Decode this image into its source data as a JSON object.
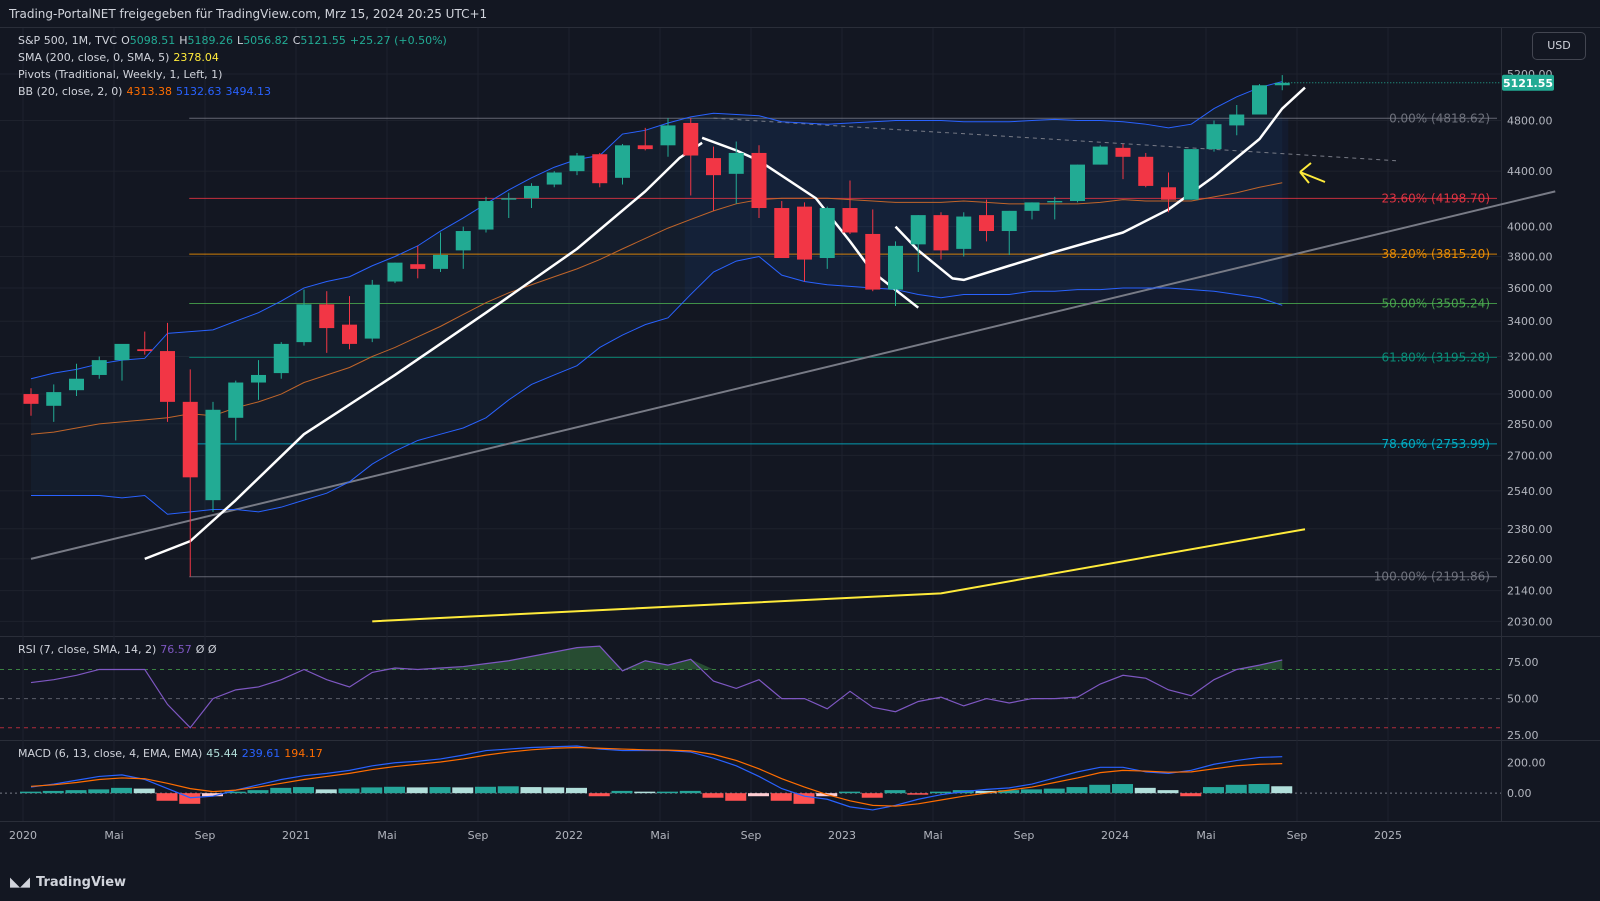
{
  "header": {
    "source_text": "Trading-PortalNET freigegeben für TradingView.com, Mrz 15, 2024 20:25 UTC+1"
  },
  "currency_button": "USD",
  "footer": {
    "brand": "TradingView",
    "brand_icon": "tradingview-logo-icon"
  },
  "legend": {
    "symbol": {
      "name": "S&P 500, 1M, TVC",
      "o_label": "O",
      "o": "5098.51",
      "h_label": "H",
      "h": "5189.26",
      "l_label": "L",
      "l": "5056.82",
      "c_label": "C",
      "c": "5121.55",
      "chg": "+25.27 (+0.50%)"
    },
    "sma": {
      "name": "SMA (200, close, 0, SMA, 5)",
      "value": "2378.04"
    },
    "pivots": {
      "name": "Pivots (Traditional, Weekly, 1, Left, 1)"
    },
    "bb": {
      "name": "BB (20, close, 2, 0)",
      "basis": "4313.38",
      "upper": "5132.63",
      "lower": "3494.13"
    },
    "rsi": {
      "name": "RSI (7, close, SMA, 14, 2)",
      "value": "76.57",
      "extra": "Ø Ø"
    },
    "macd": {
      "name": "MACD (6, 13, close, 4, EMA, EMA)",
      "hist": "45.44",
      "macd": "239.61",
      "signal": "194.17"
    }
  },
  "colors": {
    "up": "#22ab94",
    "down": "#f23645",
    "background": "#131722",
    "bb_band": "#2962ff",
    "bb_basis": "#c0652a",
    "sma": "#ffeb3b",
    "white_line": "#ffffff",
    "trend_line": "#787b86",
    "rsi": "#7e57c2",
    "macd_line": "#2962ff",
    "signal_line": "#ff6d00",
    "accent_arrow": "#ffeb3b"
  },
  "chart_data": [
    {
      "type": "candlestick",
      "title": "S&P 500, 1M, TVC",
      "y_scale": "log",
      "ylim": [
        2000,
        5400
      ],
      "y_ticks": [
        "5200.00",
        "4800.00",
        "4400.00",
        "4000.00",
        "3800.00",
        "3600.00",
        "3400.00",
        "3200.00",
        "3000.00",
        "2850.00",
        "2700.00",
        "2540.00",
        "2380.00",
        "2260.00",
        "2140.00",
        "2030.00"
      ],
      "x_ticks": [
        "Sep",
        "2020",
        "Mai",
        "Sep",
        "2021",
        "Mai",
        "Sep",
        "2022",
        "Mai",
        "Sep",
        "2023",
        "Mai",
        "Sep",
        "2024",
        "Mai",
        "Sep",
        "2025"
      ],
      "last_price_label": "5121.55",
      "candles": [
        {
          "o": 3000,
          "h": 3030,
          "l": 2890,
          "c": 2950
        },
        {
          "o": 2940,
          "h": 3050,
          "l": 2860,
          "c": 3010
        },
        {
          "o": 3020,
          "h": 3160,
          "l": 2990,
          "c": 3080
        },
        {
          "o": 3100,
          "h": 3200,
          "l": 3080,
          "c": 3180
        },
        {
          "o": 3180,
          "h": 3260,
          "l": 3070,
          "c": 3270
        },
        {
          "o": 3240,
          "h": 3340,
          "l": 3210,
          "c": 3230
        },
        {
          "o": 3230,
          "h": 3390,
          "l": 2860,
          "c": 2960
        },
        {
          "o": 2960,
          "h": 3130,
          "l": 2192,
          "c": 2600
        },
        {
          "o": 2500,
          "h": 2960,
          "l": 2450,
          "c": 2920
        },
        {
          "o": 2880,
          "h": 3070,
          "l": 2770,
          "c": 3060
        },
        {
          "o": 3060,
          "h": 3180,
          "l": 2970,
          "c": 3100
        },
        {
          "o": 3110,
          "h": 3280,
          "l": 3080,
          "c": 3270
        },
        {
          "o": 3280,
          "h": 3590,
          "l": 3260,
          "c": 3500
        },
        {
          "o": 3500,
          "h": 3580,
          "l": 3220,
          "c": 3360
        },
        {
          "o": 3380,
          "h": 3550,
          "l": 3240,
          "c": 3270
        },
        {
          "o": 3300,
          "h": 3650,
          "l": 3280,
          "c": 3620
        },
        {
          "o": 3640,
          "h": 3760,
          "l": 3630,
          "c": 3760
        },
        {
          "o": 3750,
          "h": 3870,
          "l": 3660,
          "c": 3720
        },
        {
          "o": 3720,
          "h": 3960,
          "l": 3700,
          "c": 3810
        },
        {
          "o": 3840,
          "h": 4000,
          "l": 3720,
          "c": 3970
        },
        {
          "o": 3980,
          "h": 4210,
          "l": 3960,
          "c": 4180
        },
        {
          "o": 4190,
          "h": 4240,
          "l": 4060,
          "c": 4200
        },
        {
          "o": 4200,
          "h": 4310,
          "l": 4130,
          "c": 4290
        },
        {
          "o": 4300,
          "h": 4400,
          "l": 4280,
          "c": 4390
        },
        {
          "o": 4400,
          "h": 4540,
          "l": 4370,
          "c": 4520
        },
        {
          "o": 4530,
          "h": 4540,
          "l": 4280,
          "c": 4310
        },
        {
          "o": 4350,
          "h": 4610,
          "l": 4300,
          "c": 4600
        },
        {
          "o": 4600,
          "h": 4740,
          "l": 4560,
          "c": 4570
        },
        {
          "o": 4600,
          "h": 4820,
          "l": 4510,
          "c": 4760
        },
        {
          "o": 4780,
          "h": 4820,
          "l": 4220,
          "c": 4520
        },
        {
          "o": 4500,
          "h": 4590,
          "l": 4110,
          "c": 4370
        },
        {
          "o": 4380,
          "h": 4630,
          "l": 4160,
          "c": 4540
        },
        {
          "o": 4540,
          "h": 4600,
          "l": 4060,
          "c": 4130
        },
        {
          "o": 4130,
          "h": 4180,
          "l": 3810,
          "c": 3790
        },
        {
          "o": 4140,
          "h": 4170,
          "l": 3640,
          "c": 3780
        },
        {
          "o": 3790,
          "h": 4140,
          "l": 3720,
          "c": 4130
        },
        {
          "o": 4130,
          "h": 4330,
          "l": 3950,
          "c": 3960
        },
        {
          "o": 3950,
          "h": 4120,
          "l": 3580,
          "c": 3590
        },
        {
          "o": 3590,
          "h": 3900,
          "l": 3490,
          "c": 3870
        },
        {
          "o": 3880,
          "h": 4080,
          "l": 3700,
          "c": 4080
        },
        {
          "o": 4080,
          "h": 4100,
          "l": 3780,
          "c": 3840
        },
        {
          "o": 3850,
          "h": 4100,
          "l": 3800,
          "c": 4070
        },
        {
          "o": 4080,
          "h": 4190,
          "l": 3900,
          "c": 3970
        },
        {
          "o": 3970,
          "h": 4110,
          "l": 3810,
          "c": 4110
        },
        {
          "o": 4110,
          "h": 4170,
          "l": 4050,
          "c": 4170
        },
        {
          "o": 4170,
          "h": 4210,
          "l": 4050,
          "c": 4180
        },
        {
          "o": 4180,
          "h": 4450,
          "l": 4170,
          "c": 4450
        },
        {
          "o": 4450,
          "h": 4600,
          "l": 4450,
          "c": 4590
        },
        {
          "o": 4580,
          "h": 4610,
          "l": 4340,
          "c": 4510
        },
        {
          "o": 4510,
          "h": 4540,
          "l": 4280,
          "c": 4290
        },
        {
          "o": 4280,
          "h": 4390,
          "l": 4100,
          "c": 4190
        },
        {
          "o": 4190,
          "h": 4570,
          "l": 4190,
          "c": 4570
        },
        {
          "o": 4570,
          "h": 4800,
          "l": 4550,
          "c": 4770
        },
        {
          "o": 4760,
          "h": 4930,
          "l": 4680,
          "c": 4850
        },
        {
          "o": 4850,
          "h": 5110,
          "l": 4850,
          "c": 5100
        },
        {
          "o": 5100,
          "h": 5190,
          "l": 5056.82,
          "c": 5121.55
        }
      ],
      "fibonacci": [
        {
          "label": "0.00% (4818.62)",
          "value": 4818.62,
          "color": "#787b86"
        },
        {
          "label": "23.60% (4198.70)",
          "value": 4198.7,
          "color": "#f23645"
        },
        {
          "label": "38.20% (3815.20)",
          "value": 3815.2,
          "color": "#ff9800"
        },
        {
          "label": "50.00% (3505.24)",
          "value": 3505.24,
          "color": "#4caf50"
        },
        {
          "label": "61.80% (3195.28)",
          "value": 3195.28,
          "color": "#089981"
        },
        {
          "label": "78.60% (2753.99)",
          "value": 2753.99,
          "color": "#00bcd4"
        },
        {
          "label": "100.00% (2191.86)",
          "value": 2191.86,
          "color": "#787b86"
        }
      ],
      "sma200": [
        [
          15,
          2030
        ],
        [
          40,
          2130
        ],
        [
          56,
          2378.04
        ]
      ],
      "bb_upper": [
        3080,
        3110,
        3130,
        3160,
        3180,
        3190,
        3330,
        3340,
        3350,
        3400,
        3450,
        3520,
        3600,
        3640,
        3670,
        3740,
        3800,
        3870,
        3970,
        4060,
        4160,
        4260,
        4350,
        4430,
        4490,
        4520,
        4690,
        4720,
        4780,
        4830,
        4860,
        4850,
        4840,
        4790,
        4780,
        4770,
        4780,
        4790,
        4800,
        4800,
        4800,
        4790,
        4790,
        4790,
        4800,
        4810,
        4800,
        4800,
        4790,
        4770,
        4740,
        4770,
        4900,
        5000,
        5080,
        5132.63
      ],
      "bb_basis": [
        2800,
        2810,
        2830,
        2850,
        2860,
        2870,
        2880,
        2900,
        2890,
        2930,
        2960,
        3000,
        3060,
        3100,
        3140,
        3200,
        3250,
        3310,
        3370,
        3440,
        3510,
        3570,
        3620,
        3670,
        3720,
        3780,
        3850,
        3920,
        3990,
        4050,
        4110,
        4160,
        4190,
        4200,
        4200,
        4200,
        4190,
        4180,
        4170,
        4170,
        4170,
        4180,
        4170,
        4160,
        4160,
        4160,
        4160,
        4170,
        4190,
        4180,
        4180,
        4180,
        4210,
        4240,
        4280,
        4313.38
      ],
      "bb_lower": [
        2520,
        2520,
        2520,
        2520,
        2510,
        2520,
        2440,
        2450,
        2460,
        2460,
        2450,
        2470,
        2500,
        2530,
        2580,
        2660,
        2720,
        2770,
        2800,
        2830,
        2880,
        2970,
        3050,
        3100,
        3150,
        3250,
        3320,
        3380,
        3420,
        3560,
        3700,
        3770,
        3800,
        3680,
        3640,
        3620,
        3610,
        3600,
        3590,
        3560,
        3540,
        3560,
        3560,
        3560,
        3580,
        3580,
        3590,
        3590,
        3600,
        3600,
        3600,
        3590,
        3580,
        3560,
        3540,
        3494.13
      ],
      "white_curve_1": [
        [
          5,
          2260
        ],
        [
          7,
          2330
        ],
        [
          9,
          2500
        ],
        [
          12,
          2800
        ],
        [
          16,
          3100
        ],
        [
          20,
          3450
        ],
        [
          24,
          3850
        ],
        [
          27,
          4250
        ],
        [
          28.5,
          4500
        ],
        [
          29.5,
          4620
        ]
      ],
      "white_curve_2": [
        [
          29.5,
          4660
        ],
        [
          31,
          4560
        ],
        [
          32,
          4480
        ],
        [
          34.5,
          4200
        ],
        [
          36,
          3900
        ],
        [
          37,
          3700
        ],
        [
          39,
          3480
        ]
      ],
      "white_curve_3": [
        [
          38,
          4000
        ],
        [
          39,
          3840
        ],
        [
          40.5,
          3660
        ],
        [
          41,
          3650
        ],
        [
          43,
          3740
        ],
        [
          45,
          3830
        ],
        [
          48,
          3960
        ],
        [
          50,
          4120
        ],
        [
          52,
          4360
        ],
        [
          54,
          4650
        ],
        [
          55,
          4900
        ],
        [
          56,
          5080
        ]
      ],
      "trend_line": [
        [
          0,
          2260
        ],
        [
          67,
          4250
        ]
      ],
      "dashed_line": [
        [
          30,
          4820
        ],
        [
          60,
          4480
        ]
      ]
    },
    {
      "type": "line",
      "title": "RSI (7, close, SMA, 14, 2)",
      "ylim": [
        25,
        82
      ],
      "y_ticks": [
        "75.00",
        "50.00",
        "25.00"
      ],
      "bands": [
        70,
        50,
        30
      ],
      "values": [
        61,
        63,
        66,
        70,
        70,
        70,
        46,
        30,
        50,
        56,
        58,
        63,
        70,
        63,
        58,
        68,
        71,
        70,
        71,
        72,
        74,
        76,
        79,
        82,
        85,
        86,
        69,
        76,
        73,
        77,
        62,
        57,
        63,
        50,
        50,
        43,
        55,
        44,
        41,
        48,
        51,
        45,
        50,
        47,
        50,
        50,
        51,
        60,
        66,
        64,
        56,
        52,
        63,
        70,
        73,
        76.57
      ]
    },
    {
      "type": "bar+line",
      "title": "MACD (6, 13, close, 4, EMA, EMA)",
      "ylim": [
        -150,
        310
      ],
      "y_ticks": [
        "200.00",
        "0.00"
      ],
      "hist": [
        10,
        15,
        20,
        25,
        35,
        30,
        -50,
        -70,
        -20,
        10,
        20,
        35,
        40,
        25,
        30,
        38,
        42,
        38,
        40,
        38,
        42,
        45,
        40,
        38,
        35,
        -20,
        15,
        10,
        10,
        15,
        -30,
        -50,
        -20,
        -50,
        -70,
        -20,
        10,
        -30,
        20,
        -10,
        10,
        20,
        15,
        20,
        25,
        30,
        40,
        55,
        60,
        35,
        20,
        -20,
        40,
        55,
        60,
        45.44
      ],
      "macd": [
        40,
        60,
        85,
        110,
        120,
        90,
        30,
        -30,
        -20,
        20,
        55,
        90,
        115,
        130,
        150,
        180,
        200,
        210,
        225,
        250,
        280,
        290,
        300,
        305,
        310,
        290,
        280,
        280,
        280,
        270,
        230,
        180,
        110,
        30,
        -20,
        -40,
        -90,
        -110,
        -80,
        -40,
        -10,
        10,
        25,
        35,
        60,
        100,
        140,
        170,
        170,
        140,
        130,
        150,
        190,
        215,
        235,
        239.61
      ],
      "signal": [
        45,
        55,
        70,
        90,
        100,
        95,
        65,
        30,
        10,
        20,
        40,
        65,
        90,
        110,
        130,
        155,
        175,
        190,
        205,
        225,
        250,
        270,
        285,
        295,
        300,
        295,
        290,
        285,
        283,
        278,
        255,
        215,
        160,
        95,
        40,
        -10,
        -50,
        -80,
        -85,
        -70,
        -45,
        -20,
        0,
        20,
        40,
        70,
        100,
        135,
        150,
        145,
        138,
        140,
        160,
        180,
        190,
        194.17
      ]
    }
  ]
}
